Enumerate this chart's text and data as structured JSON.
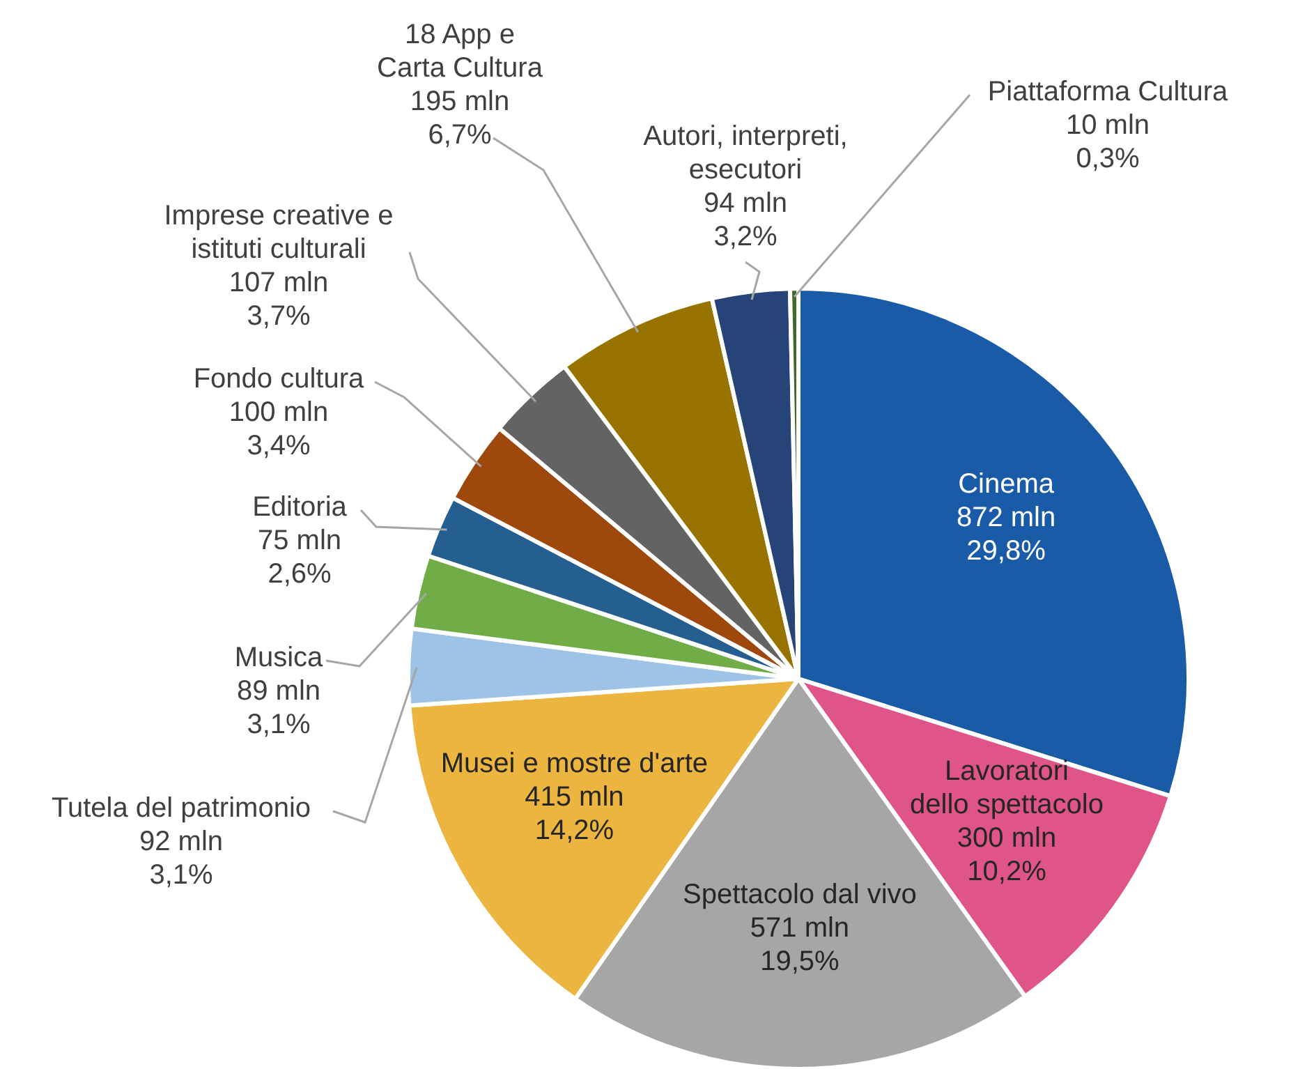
{
  "chart_data": {
    "type": "pie",
    "categories": [
      "Cinema",
      "Lavoratori dello spettacolo",
      "Spettacolo dal vivo",
      "Musei e mostre d'arte",
      "Tutela del patrimonio",
      "Musica",
      "Editoria",
      "Fondo cultura",
      "Imprese creative e istituti culturali",
      "18 App e Carta Cultura",
      "Autori, interpreti, esecutori",
      "Piattaforma Cultura"
    ],
    "values": [
      872,
      300,
      571,
      415,
      92,
      89,
      75,
      100,
      107,
      195,
      94,
      10
    ],
    "colors": [
      "#1a5ba8",
      "#e05587",
      "#a6a6a6",
      "#ecb540",
      "#9dc3e6",
      "#70ad47",
      "#255e91",
      "#9e480e",
      "#636363",
      "#997300",
      "#264478",
      "#43682b"
    ],
    "value_labels": [
      "872 mln\n29,8%",
      "300 mln\n10,2%",
      "571 mln\n19,5%",
      "415 mln\n14,2%",
      "92 mln\n3,1%",
      "89 mln\n3,1%",
      "75 mln\n2,6%",
      "100 mln\n3,4%",
      "107 mln\n3,7%",
      "195 mln\n6,7%",
      "94 mln\n3,2%",
      "10 mln\n0,3%"
    ],
    "legend": false
  }
}
